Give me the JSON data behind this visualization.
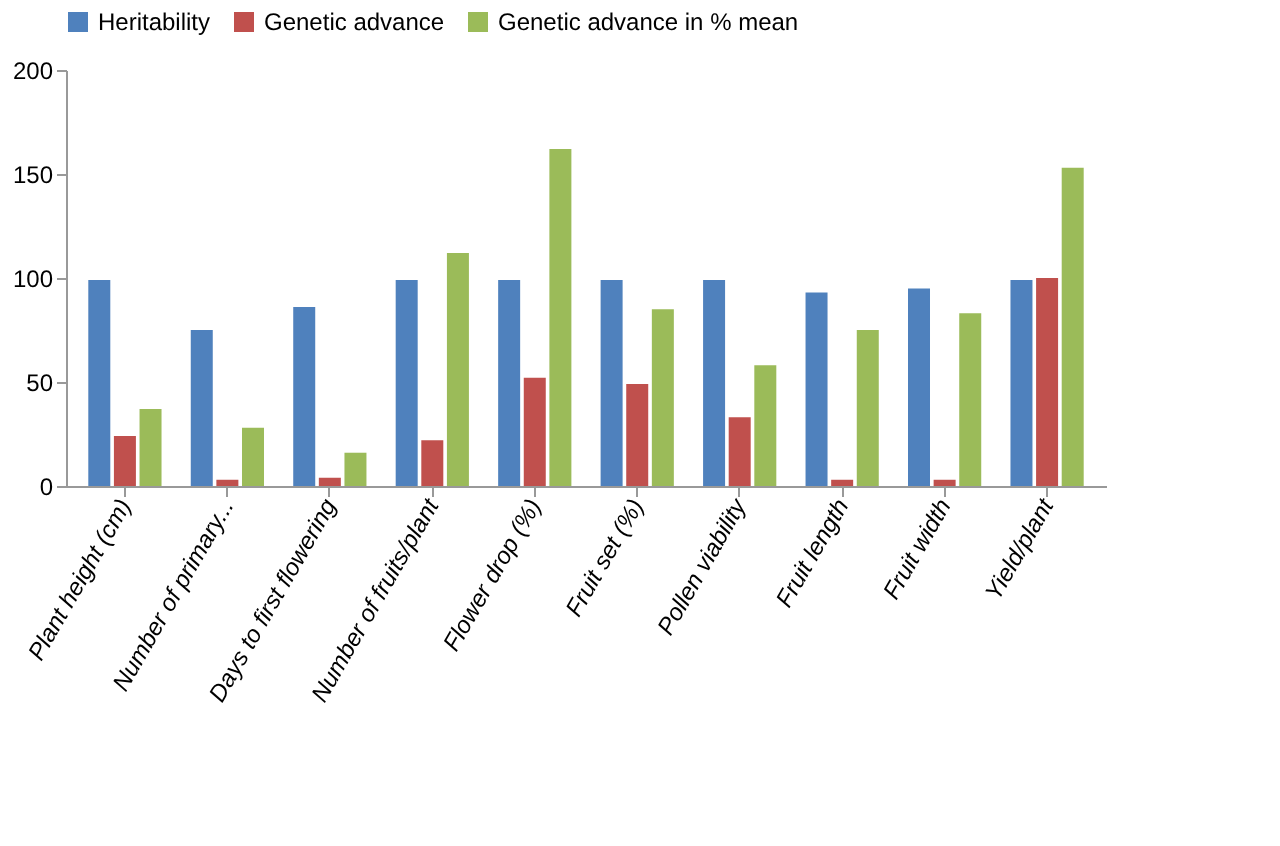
{
  "chart_data": {
    "type": "bar",
    "categories": [
      "Plant height (cm)",
      "Number of primary...",
      "Days to first flowering",
      "Number of fruits/plant",
      "Flower drop (%)",
      "Fruit set (%)",
      "Pollen viability",
      "Fruit length",
      "Fruit width",
      "Yield/plant"
    ],
    "series": [
      {
        "name": "Heritability",
        "color": "#4f81bd",
        "values": [
          99,
          75,
          86,
          99,
          99,
          99,
          99,
          93,
          95,
          99
        ]
      },
      {
        "name": "Genetic advance",
        "color": "#c0504d",
        "values": [
          24,
          3,
          4,
          22,
          52,
          49,
          33,
          3,
          3,
          100
        ]
      },
      {
        "name": "Genetic advance in % mean",
        "color": "#9bbb59",
        "values": [
          37,
          28,
          16,
          112,
          162,
          85,
          58,
          75,
          83,
          153
        ]
      }
    ],
    "ylim": [
      0,
      200
    ],
    "yticks": [
      0,
      50,
      100,
      150,
      200
    ],
    "grid": false,
    "legend": "top"
  }
}
